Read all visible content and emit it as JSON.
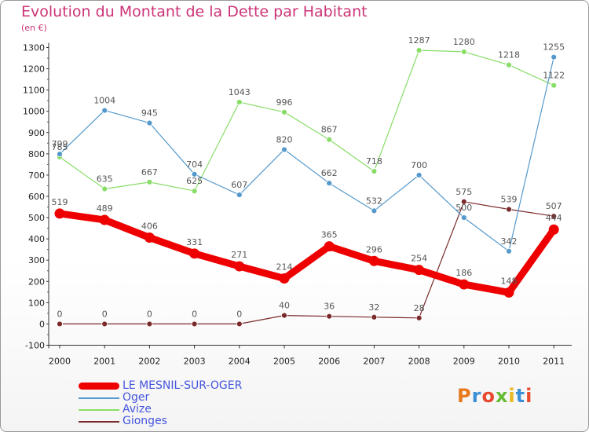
{
  "title": "Evolution du Montant de la Dette par Habitant",
  "subtitle": "(en €)",
  "logo": "Proxiti",
  "colors": {
    "title": "#cc3377",
    "legend_text": "#4455dd",
    "axis": "#333333"
  },
  "chart_data": {
    "type": "line",
    "title": "Evolution du Montant de la Dette par Habitant",
    "ylabel": "(en €)",
    "xlabel": "",
    "ylim": [
      -100,
      1300
    ],
    "ytick_step": 100,
    "grid": false,
    "legend_position": "bottom-left",
    "categories": [
      "2000",
      "2001",
      "2002",
      "2003",
      "2004",
      "2005",
      "2006",
      "2007",
      "2008",
      "2009",
      "2010",
      "2011"
    ],
    "series": [
      {
        "name": "Gionges",
        "color": "#7a2a2a",
        "values": [
          0,
          0,
          0,
          0,
          0,
          40,
          36,
          32,
          28,
          575,
          539,
          507
        ],
        "labels": [
          "0",
          "0",
          "0",
          "0",
          "0",
          "40",
          "36",
          "32",
          "28",
          "575",
          "539",
          "507"
        ]
      },
      {
        "name": "Avize",
        "color": "#88dd66",
        "values": [
          785,
          635,
          667,
          625,
          1043,
          996,
          867,
          718,
          1287,
          1280,
          1218,
          1122
        ],
        "labels": [
          "785",
          "635",
          "667",
          "625",
          "1043",
          "996",
          "867",
          "718",
          "1287",
          "1280",
          "1218",
          "1122"
        ]
      },
      {
        "name": "Oger",
        "color": "#5599cc",
        "values": [
          799,
          1004,
          945,
          704,
          607,
          820,
          662,
          532,
          700,
          500,
          342,
          1255
        ],
        "labels": [
          "799",
          "1004",
          "945",
          "704",
          "607",
          "820",
          "662",
          "532",
          "700",
          "500",
          "342",
          "1255"
        ]
      },
      {
        "name": "LE MESNIL-SUR-OGER",
        "color": "#ee0000",
        "values": [
          519,
          489,
          406,
          331,
          271,
          214,
          365,
          296,
          254,
          186,
          148,
          444
        ],
        "labels": [
          "519",
          "489",
          "406",
          "331",
          "271",
          "214",
          "365",
          "296",
          "254",
          "186",
          "148",
          "444"
        ]
      }
    ]
  },
  "legend": [
    {
      "name": "LE MESNIL-SUR-OGER",
      "color": "#ee0000"
    },
    {
      "name": "Oger",
      "color": "#5599cc"
    },
    {
      "name": "Avize",
      "color": "#88dd66"
    },
    {
      "name": "Gionges",
      "color": "#7a2a2a"
    }
  ]
}
